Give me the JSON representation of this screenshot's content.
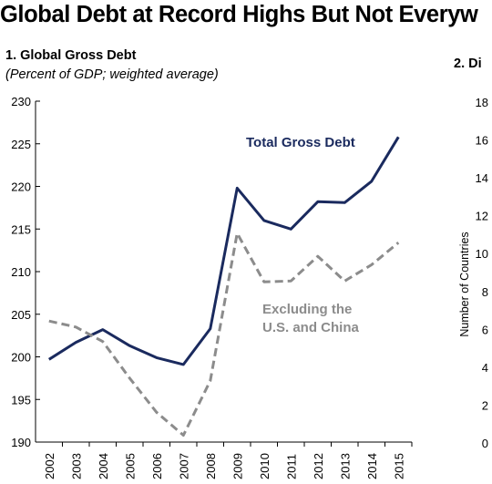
{
  "header": {
    "title": "Global Debt at Record Highs But Not Everyw"
  },
  "chart_data": [
    {
      "type": "line",
      "title": "1. Global Gross Debt",
      "subtitle": "(Percent of GDP; weighted average)",
      "xlabel": "",
      "ylabel": "",
      "ylim": [
        190,
        230
      ],
      "yticks": [
        190,
        195,
        200,
        205,
        210,
        215,
        220,
        225,
        230
      ],
      "ytick_labels": [
        "190",
        "195",
        "200",
        "205",
        "210",
        "215",
        "220",
        "225",
        "230"
      ],
      "x": [
        "2002",
        "2003",
        "2004",
        "2005",
        "2006",
        "2007",
        "2008",
        "2009",
        "2010",
        "2011",
        "2012",
        "2013",
        "2014",
        "2015"
      ],
      "grid": false,
      "series": [
        {
          "name": "Total Gross Debt",
          "color": "#1a2a5e",
          "style": "solid",
          "values": [
            199.7,
            201.7,
            203.2,
            201.3,
            199.9,
            199.1,
            203.3,
            219.8,
            216.0,
            215.0,
            218.2,
            218.1,
            220.6,
            225.8
          ]
        },
        {
          "name": "Excluding the U.S. and China",
          "color": "#8c8c8c",
          "style": "dashed",
          "values": [
            204.2,
            203.5,
            201.8,
            197.5,
            193.5,
            190.8,
            197.2,
            214.5,
            208.8,
            208.9,
            211.8,
            208.9,
            210.8,
            213.4
          ]
        }
      ],
      "annotations": [
        "Total Gross Debt",
        "Excluding the",
        "U.S. and China"
      ]
    },
    {
      "type": "bar",
      "title": "2. Di",
      "ylabel": "Number of Countries",
      "ylim": [
        0,
        18
      ],
      "yticks": [
        0,
        2,
        4,
        6,
        8,
        10,
        12,
        14,
        16,
        18
      ],
      "ytick_labels": [
        "0",
        "2",
        "4",
        "6",
        "8",
        "10",
        "12",
        "14",
        "16",
        "18"
      ]
    }
  ]
}
